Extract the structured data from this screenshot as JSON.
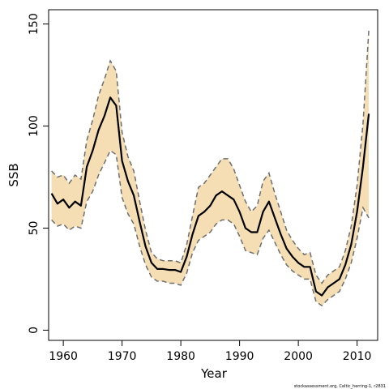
{
  "chart_data": {
    "type": "line",
    "xlabel": "Year",
    "ylabel": "SSB",
    "xlim": [
      1957.5,
      2013.5
    ],
    "ylim": [
      -5,
      157
    ],
    "x_ticks": [
      1960,
      1970,
      1980,
      1990,
      2000,
      2010
    ],
    "y_ticks": [
      0,
      50,
      100,
      150
    ],
    "grid": false,
    "credit": "stockassessment.org, Celtic_herring-1, r2831",
    "colors": {
      "band": "#f5deb3",
      "estimate": "#000000",
      "dashed": "#6e6e6e"
    },
    "x": [
      1958,
      1959,
      1960,
      1961,
      1962,
      1963,
      1964,
      1965,
      1966,
      1967,
      1968,
      1969,
      1970,
      1971,
      1972,
      1973,
      1974,
      1975,
      1976,
      1977,
      1978,
      1979,
      1980,
      1981,
      1982,
      1983,
      1984,
      1985,
      1986,
      1987,
      1988,
      1989,
      1990,
      1991,
      1992,
      1993,
      1994,
      1995,
      1996,
      1997,
      1998,
      1999,
      2000,
      2001,
      2002,
      2003,
      2004,
      2005,
      2006,
      2007,
      2008,
      2009,
      2010,
      2011,
      2012
    ],
    "series": [
      {
        "role": "estimate",
        "values": [
          67,
          62,
          64,
          60,
          63,
          61,
          80,
          88,
          98,
          105,
          114,
          110,
          83,
          73,
          66,
          53,
          41,
          33,
          30,
          30,
          29.5,
          29.5,
          28.5,
          36,
          47,
          56,
          58,
          61,
          66,
          68,
          66,
          64,
          58,
          50,
          48,
          48,
          58,
          63,
          55,
          47,
          40,
          36,
          33,
          31,
          31,
          19,
          17,
          21,
          23,
          25,
          32,
          42,
          58,
          80,
          106
        ]
      },
      {
        "role": "upper-bound",
        "values": [
          78,
          75,
          76,
          72,
          76,
          74,
          93,
          103,
          115,
          123,
          132,
          127,
          97,
          85,
          78,
          63,
          49,
          38,
          35,
          34,
          34,
          34,
          33,
          42,
          56,
          70,
          72,
          76,
          80,
          84,
          84,
          79,
          71,
          63,
          58,
          61,
          73,
          77,
          67,
          58,
          49,
          44,
          40,
          37,
          38,
          27,
          23,
          27,
          29,
          31,
          39,
          51,
          71,
          101,
          147
        ]
      },
      {
        "role": "lower-bound",
        "values": [
          54,
          51,
          52,
          49,
          51,
          50,
          63,
          68,
          76,
          82,
          88,
          86,
          65,
          57,
          52,
          41,
          32,
          26,
          24,
          24,
          23,
          23,
          22,
          28,
          38,
          44,
          46,
          48,
          52,
          54,
          54,
          52,
          46,
          39,
          38,
          37,
          45,
          49,
          43,
          37,
          32,
          29,
          27,
          25,
          25,
          14,
          12,
          15,
          17,
          19,
          25,
          33,
          45,
          60,
          55
        ]
      }
    ]
  }
}
